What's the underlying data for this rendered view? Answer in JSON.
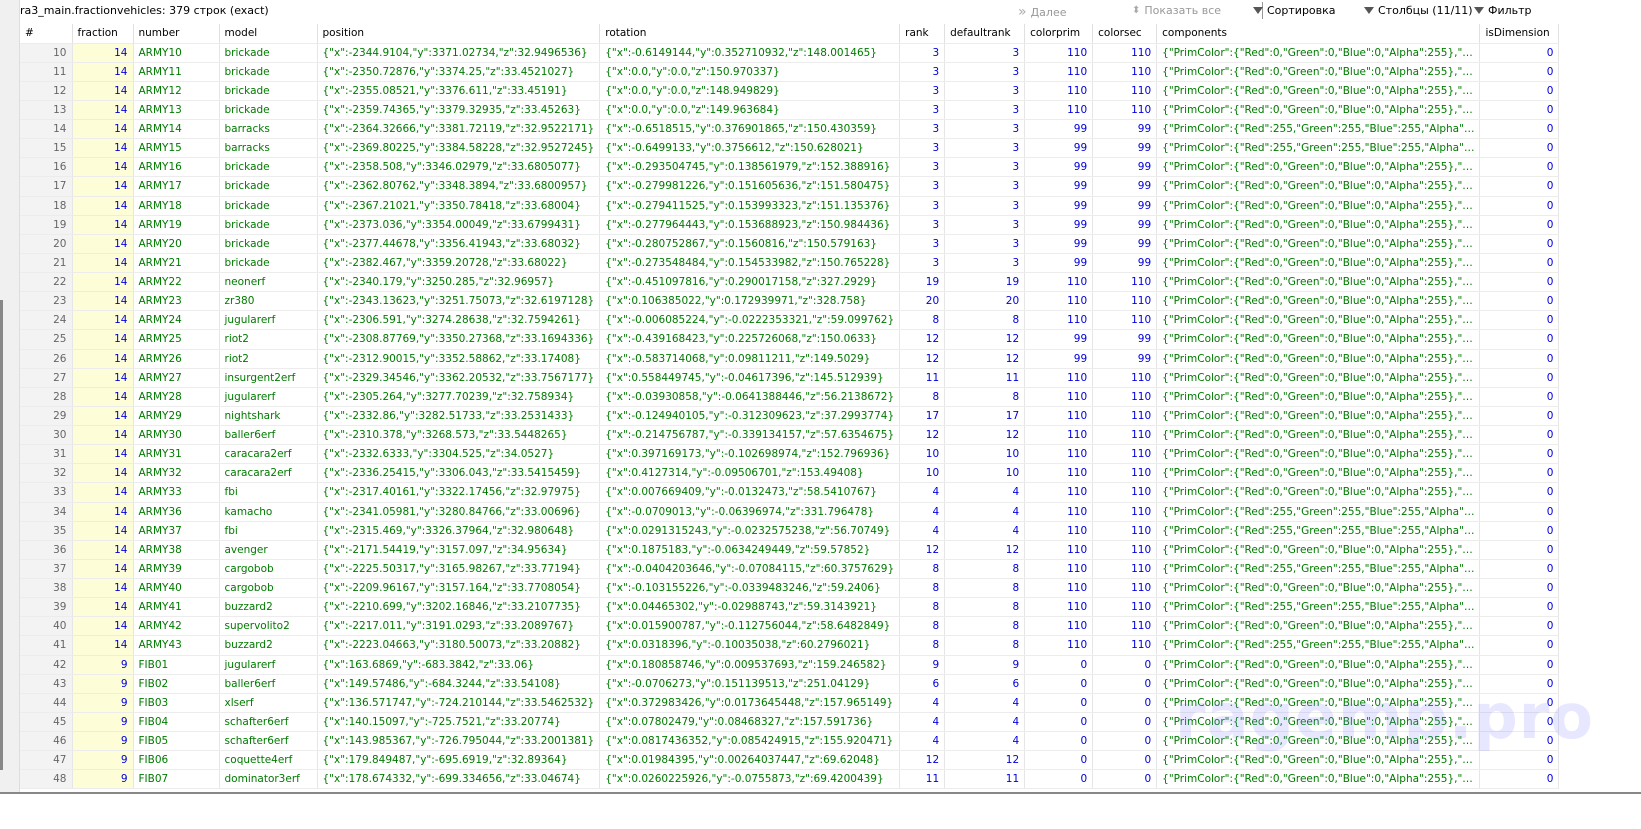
{
  "title": "ra3_main.fractionvehicles: 379 строк (exact)",
  "toolbar": {
    "next": "Далее",
    "show_all": "Показать все",
    "sort": "Сортировка",
    "columns": "Столбцы (11/11)",
    "filter": "Фильтр"
  },
  "columns": [
    "#",
    "fraction",
    "number",
    "model",
    "position",
    "rotation",
    "rank",
    "defaultrank",
    "colorprim",
    "colorsec",
    "components",
    "isDimension"
  ],
  "rows": [
    [
      "10",
      "14",
      "ARMY10",
      "brickade",
      "{\"x\":-2344.9104,\"y\":3371.02734,\"z\":32.9496536}",
      "{\"x\":-0.6149144,\"y\":0.352710932,\"z\":148.001465}",
      "3",
      "3",
      "110",
      "110",
      "{\"PrimColor\":{\"Red\":0,\"Green\":0,\"Blue\":0,\"Alpha\":255},\"…",
      "0"
    ],
    [
      "11",
      "14",
      "ARMY11",
      "brickade",
      "{\"x\":-2350.72876,\"y\":3374.25,\"z\":33.4521027}",
      "{\"x\":0.0,\"y\":0.0,\"z\":150.970337}",
      "3",
      "3",
      "110",
      "110",
      "{\"PrimColor\":{\"Red\":0,\"Green\":0,\"Blue\":0,\"Alpha\":255},\"…",
      "0"
    ],
    [
      "12",
      "14",
      "ARMY12",
      "brickade",
      "{\"x\":-2355.08521,\"y\":3376.611,\"z\":33.45191}",
      "{\"x\":0.0,\"y\":0.0,\"z\":148.949829}",
      "3",
      "3",
      "110",
      "110",
      "{\"PrimColor\":{\"Red\":0,\"Green\":0,\"Blue\":0,\"Alpha\":255},\"…",
      "0"
    ],
    [
      "13",
      "14",
      "ARMY13",
      "brickade",
      "{\"x\":-2359.74365,\"y\":3379.32935,\"z\":33.45263}",
      "{\"x\":0.0,\"y\":0.0,\"z\":149.963684}",
      "3",
      "3",
      "110",
      "110",
      "{\"PrimColor\":{\"Red\":0,\"Green\":0,\"Blue\":0,\"Alpha\":255},\"…",
      "0"
    ],
    [
      "14",
      "14",
      "ARMY14",
      "barracks",
      "{\"x\":-2364.32666,\"y\":3381.72119,\"z\":32.9522171}",
      "{\"x\":-0.6518515,\"y\":0.376901865,\"z\":150.430359}",
      "3",
      "3",
      "99",
      "99",
      "{\"PrimColor\":{\"Red\":255,\"Green\":255,\"Blue\":255,\"Alpha\"…",
      "0"
    ],
    [
      "15",
      "14",
      "ARMY15",
      "barracks",
      "{\"x\":-2369.80225,\"y\":3384.58228,\"z\":32.9527245}",
      "{\"x\":-0.6499133,\"y\":0.3756612,\"z\":150.628021}",
      "3",
      "3",
      "99",
      "99",
      "{\"PrimColor\":{\"Red\":255,\"Green\":255,\"Blue\":255,\"Alpha\"…",
      "0"
    ],
    [
      "16",
      "14",
      "ARMY16",
      "brickade",
      "{\"x\":-2358.508,\"y\":3346.02979,\"z\":33.6805077}",
      "{\"x\":-0.293504745,\"y\":0.138561979,\"z\":152.388916}",
      "3",
      "3",
      "99",
      "99",
      "{\"PrimColor\":{\"Red\":0,\"Green\":0,\"Blue\":0,\"Alpha\":255},\"…",
      "0"
    ],
    [
      "17",
      "14",
      "ARMY17",
      "brickade",
      "{\"x\":-2362.80762,\"y\":3348.3894,\"z\":33.6800957}",
      "{\"x\":-0.279981226,\"y\":0.151605636,\"z\":151.580475}",
      "3",
      "3",
      "99",
      "99",
      "{\"PrimColor\":{\"Red\":0,\"Green\":0,\"Blue\":0,\"Alpha\":255},\"…",
      "0"
    ],
    [
      "18",
      "14",
      "ARMY18",
      "brickade",
      "{\"x\":-2367.21021,\"y\":3350.78418,\"z\":33.68004}",
      "{\"x\":-0.279411525,\"y\":0.153993323,\"z\":151.135376}",
      "3",
      "3",
      "99",
      "99",
      "{\"PrimColor\":{\"Red\":0,\"Green\":0,\"Blue\":0,\"Alpha\":255},\"…",
      "0"
    ],
    [
      "19",
      "14",
      "ARMY19",
      "brickade",
      "{\"x\":-2373.036,\"y\":3354.00049,\"z\":33.6799431}",
      "{\"x\":-0.277964443,\"y\":0.153688923,\"z\":150.984436}",
      "3",
      "3",
      "99",
      "99",
      "{\"PrimColor\":{\"Red\":0,\"Green\":0,\"Blue\":0,\"Alpha\":255},\"…",
      "0"
    ],
    [
      "20",
      "14",
      "ARMY20",
      "brickade",
      "{\"x\":-2377.44678,\"y\":3356.41943,\"z\":33.68032}",
      "{\"x\":-0.280752867,\"y\":0.1560816,\"z\":150.579163}",
      "3",
      "3",
      "99",
      "99",
      "{\"PrimColor\":{\"Red\":0,\"Green\":0,\"Blue\":0,\"Alpha\":255},\"…",
      "0"
    ],
    [
      "21",
      "14",
      "ARMY21",
      "brickade",
      "{\"x\":-2382.467,\"y\":3359.20728,\"z\":33.68022}",
      "{\"x\":-0.273548484,\"y\":0.154533982,\"z\":150.765228}",
      "3",
      "3",
      "99",
      "99",
      "{\"PrimColor\":{\"Red\":0,\"Green\":0,\"Blue\":0,\"Alpha\":255},\"…",
      "0"
    ],
    [
      "22",
      "14",
      "ARMY22",
      "neonerf",
      "{\"x\":-2340.179,\"y\":3250.285,\"z\":32.96957}",
      "{\"x\":-0.451097816,\"y\":0.290017158,\"z\":327.2929}",
      "19",
      "19",
      "110",
      "110",
      "{\"PrimColor\":{\"Red\":0,\"Green\":0,\"Blue\":0,\"Alpha\":255},\"…",
      "0"
    ],
    [
      "23",
      "14",
      "ARMY23",
      "zr380",
      "{\"x\":-2343.13623,\"y\":3251.75073,\"z\":32.6197128}",
      "{\"x\":0.106385022,\"y\":0.172939971,\"z\":328.758}",
      "20",
      "20",
      "110",
      "110",
      "{\"PrimColor\":{\"Red\":0,\"Green\":0,\"Blue\":0,\"Alpha\":255},\"…",
      "0"
    ],
    [
      "24",
      "14",
      "ARMY24",
      "jugularerf",
      "{\"x\":-2306.591,\"y\":3274.28638,\"z\":32.7594261}",
      "{\"x\":-0.006085224,\"y\":-0.0222353321,\"z\":59.099762}",
      "8",
      "8",
      "110",
      "110",
      "{\"PrimColor\":{\"Red\":0,\"Green\":0,\"Blue\":0,\"Alpha\":255},\"…",
      "0"
    ],
    [
      "25",
      "14",
      "ARMY25",
      "riot2",
      "{\"x\":-2308.87769,\"y\":3350.27368,\"z\":33.1694336}",
      "{\"x\":-0.439168423,\"y\":0.225726068,\"z\":150.0633}",
      "12",
      "12",
      "99",
      "99",
      "{\"PrimColor\":{\"Red\":0,\"Green\":0,\"Blue\":0,\"Alpha\":255},\"…",
      "0"
    ],
    [
      "26",
      "14",
      "ARMY26",
      "riot2",
      "{\"x\":-2312.90015,\"y\":3352.58862,\"z\":33.17408}",
      "{\"x\":-0.583714068,\"y\":0.09811211,\"z\":149.5029}",
      "12",
      "12",
      "99",
      "99",
      "{\"PrimColor\":{\"Red\":0,\"Green\":0,\"Blue\":0,\"Alpha\":255},\"…",
      "0"
    ],
    [
      "27",
      "14",
      "ARMY27",
      "insurgent2erf",
      "{\"x\":-2329.34546,\"y\":3362.20532,\"z\":33.7567177}",
      "{\"x\":0.558449745,\"y\":-0.04617396,\"z\":145.512939}",
      "11",
      "11",
      "110",
      "110",
      "{\"PrimColor\":{\"Red\":0,\"Green\":0,\"Blue\":0,\"Alpha\":255},\"…",
      "0"
    ],
    [
      "28",
      "14",
      "ARMY28",
      "jugularerf",
      "{\"x\":-2305.264,\"y\":3277.70239,\"z\":32.758934}",
      "{\"x\":-0.03930858,\"y\":-0.0641388446,\"z\":56.2138672}",
      "8",
      "8",
      "110",
      "110",
      "{\"PrimColor\":{\"Red\":0,\"Green\":0,\"Blue\":0,\"Alpha\":255},\"…",
      "0"
    ],
    [
      "29",
      "14",
      "ARMY29",
      "nightshark",
      "{\"x\":-2332.86,\"y\":3282.51733,\"z\":33.2531433}",
      "{\"x\":-0.124940105,\"y\":-0.312309623,\"z\":37.2993774}",
      "17",
      "17",
      "110",
      "110",
      "{\"PrimColor\":{\"Red\":0,\"Green\":0,\"Blue\":0,\"Alpha\":255},\"…",
      "0"
    ],
    [
      "30",
      "14",
      "ARMY30",
      "baller6erf",
      "{\"x\":-2310.378,\"y\":3268.573,\"z\":33.5448265}",
      "{\"x\":-0.214756787,\"y\":-0.339134157,\"z\":57.6354675}",
      "12",
      "12",
      "110",
      "110",
      "{\"PrimColor\":{\"Red\":0,\"Green\":0,\"Blue\":0,\"Alpha\":255},\"…",
      "0"
    ],
    [
      "31",
      "14",
      "ARMY31",
      "caracara2erf",
      "{\"x\":-2332.6333,\"y\":3304.525,\"z\":34.0527}",
      "{\"x\":0.397169173,\"y\":-0.102698974,\"z\":152.796936}",
      "10",
      "10",
      "110",
      "110",
      "{\"PrimColor\":{\"Red\":0,\"Green\":0,\"Blue\":0,\"Alpha\":255},\"…",
      "0"
    ],
    [
      "32",
      "14",
      "ARMY32",
      "caracara2erf",
      "{\"x\":-2336.25415,\"y\":3306.043,\"z\":33.5415459}",
      "{\"x\":0.4127314,\"y\":-0.09506701,\"z\":153.49408}",
      "10",
      "10",
      "110",
      "110",
      "{\"PrimColor\":{\"Red\":0,\"Green\":0,\"Blue\":0,\"Alpha\":255},\"…",
      "0"
    ],
    [
      "33",
      "14",
      "ARMY33",
      "fbi",
      "{\"x\":-2317.40161,\"y\":3322.17456,\"z\":32.97975}",
      "{\"x\":0.007669409,\"y\":-0.0132473,\"z\":58.5410767}",
      "4",
      "4",
      "110",
      "110",
      "{\"PrimColor\":{\"Red\":0,\"Green\":0,\"Blue\":0,\"Alpha\":255},\"…",
      "0"
    ],
    [
      "34",
      "14",
      "ARMY36",
      "kamacho",
      "{\"x\":-2341.05981,\"y\":3280.84766,\"z\":33.00696}",
      "{\"x\":-0.0709013,\"y\":-0.06396974,\"z\":331.796478}",
      "4",
      "4",
      "110",
      "110",
      "{\"PrimColor\":{\"Red\":255,\"Green\":255,\"Blue\":255,\"Alpha\"…",
      "0"
    ],
    [
      "35",
      "14",
      "ARMY37",
      "fbi",
      "{\"x\":-2315.469,\"y\":3326.37964,\"z\":32.980648}",
      "{\"x\":0.0291315243,\"y\":-0.0232575238,\"z\":56.70749}",
      "4",
      "4",
      "110",
      "110",
      "{\"PrimColor\":{\"Red\":255,\"Green\":255,\"Blue\":255,\"Alpha\"…",
      "0"
    ],
    [
      "36",
      "14",
      "ARMY38",
      "avenger",
      "{\"x\":-2171.54419,\"y\":3157.097,\"z\":34.95634}",
      "{\"x\":0.1875183,\"y\":-0.0634249449,\"z\":59.57852}",
      "12",
      "12",
      "110",
      "110",
      "{\"PrimColor\":{\"Red\":0,\"Green\":0,\"Blue\":0,\"Alpha\":255},\"…",
      "0"
    ],
    [
      "37",
      "14",
      "ARMY39",
      "cargobob",
      "{\"x\":-2225.50317,\"y\":3165.98267,\"z\":33.77194}",
      "{\"x\":-0.0404203646,\"y\":-0.07084115,\"z\":60.3757629}",
      "8",
      "8",
      "110",
      "110",
      "{\"PrimColor\":{\"Red\":255,\"Green\":255,\"Blue\":255,\"Alpha\"…",
      "0"
    ],
    [
      "38",
      "14",
      "ARMY40",
      "cargobob",
      "{\"x\":-2209.96167,\"y\":3157.164,\"z\":33.7708054}",
      "{\"x\":-0.103155226,\"y\":-0.0339483246,\"z\":59.2406}",
      "8",
      "8",
      "110",
      "110",
      "{\"PrimColor\":{\"Red\":0,\"Green\":0,\"Blue\":0,\"Alpha\":255},\"…",
      "0"
    ],
    [
      "39",
      "14",
      "ARMY41",
      "buzzard2",
      "{\"x\":-2210.699,\"y\":3202.16846,\"z\":33.2107735}",
      "{\"x\":0.04465302,\"y\":-0.02988743,\"z\":59.3143921}",
      "8",
      "8",
      "110",
      "110",
      "{\"PrimColor\":{\"Red\":255,\"Green\":255,\"Blue\":255,\"Alpha\"…",
      "0"
    ],
    [
      "40",
      "14",
      "ARMY42",
      "supervolito2",
      "{\"x\":-2217.011,\"y\":3191.0293,\"z\":33.2089767}",
      "{\"x\":0.015900787,\"y\":-0.112756044,\"z\":58.6482849}",
      "8",
      "8",
      "110",
      "110",
      "{\"PrimColor\":{\"Red\":0,\"Green\":0,\"Blue\":0,\"Alpha\":255},\"…",
      "0"
    ],
    [
      "41",
      "14",
      "ARMY43",
      "buzzard2",
      "{\"x\":-2223.04663,\"y\":3180.50073,\"z\":33.20882}",
      "{\"x\":0.0318396,\"y\":-0.10035038,\"z\":60.2796021}",
      "8",
      "8",
      "110",
      "110",
      "{\"PrimColor\":{\"Red\":255,\"Green\":255,\"Blue\":255,\"Alpha\"…",
      "0"
    ],
    [
      "42",
      "9",
      "FIB01",
      "jugularerf",
      "{\"x\":163.6869,\"y\":-683.3842,\"z\":33.06}",
      "{\"x\":0.180858746,\"y\":0.009537693,\"z\":159.246582}",
      "9",
      "9",
      "0",
      "0",
      "{\"PrimColor\":{\"Red\":0,\"Green\":0,\"Blue\":0,\"Alpha\":255},\"…",
      "0"
    ],
    [
      "43",
      "9",
      "FIB02",
      "baller6erf",
      "{\"x\":149.57486,\"y\":-684.3244,\"z\":33.54108}",
      "{\"x\":-0.0706273,\"y\":0.151139513,\"z\":251.04129}",
      "6",
      "6",
      "0",
      "0",
      "{\"PrimColor\":{\"Red\":0,\"Green\":0,\"Blue\":0,\"Alpha\":255},\"…",
      "0"
    ],
    [
      "44",
      "9",
      "FIB03",
      "xlserf",
      "{\"x\":136.571747,\"y\":-724.210144,\"z\":33.5462532}",
      "{\"x\":0.372983426,\"y\":0.0173645448,\"z\":157.965149}",
      "4",
      "4",
      "0",
      "0",
      "{\"PrimColor\":{\"Red\":0,\"Green\":0,\"Blue\":0,\"Alpha\":255},\"…",
      "0"
    ],
    [
      "45",
      "9",
      "FIB04",
      "schafter6erf",
      "{\"x\":140.15097,\"y\":-725.7521,\"z\":33.20774}",
      "{\"x\":0.07802479,\"y\":0.08468327,\"z\":157.591736}",
      "4",
      "4",
      "0",
      "0",
      "{\"PrimColor\":{\"Red\":0,\"Green\":0,\"Blue\":0,\"Alpha\":255},\"…",
      "0"
    ],
    [
      "46",
      "9",
      "FIB05",
      "schafter6erf",
      "{\"x\":143.985367,\"y\":-726.795044,\"z\":33.2001381}",
      "{\"x\":0.0817436352,\"y\":0.085424915,\"z\":155.920471}",
      "4",
      "4",
      "0",
      "0",
      "{\"PrimColor\":{\"Red\":0,\"Green\":0,\"Blue\":0,\"Alpha\":255},\"…",
      "0"
    ],
    [
      "47",
      "9",
      "FIB06",
      "coquette4erf",
      "{\"x\":179.849487,\"y\":-695.6919,\"z\":32.89364}",
      "{\"x\":0.01984395,\"y\":0.00264037447,\"z\":69.62048}",
      "12",
      "12",
      "0",
      "0",
      "{\"PrimColor\":{\"Red\":0,\"Green\":0,\"Blue\":0,\"Alpha\":255},\"…",
      "0"
    ],
    [
      "48",
      "9",
      "FIB07",
      "dominator3erf",
      "{\"x\":178.674332,\"y\":-699.334656,\"z\":33.04674}",
      "{\"x\":0.0260225926,\"y\":-0.0755873,\"z\":69.4200439}",
      "11",
      "11",
      "0",
      "0",
      "{\"PrimColor\":{\"Red\":0,\"Green\":0,\"Blue\":0,\"Alpha\":255},\"…",
      "0"
    ]
  ],
  "watermark": "ragemp.pro",
  "colors": {
    "text_green": "#007a00",
    "number_blue": "#0000e0",
    "fraction_bg": "#fdfdd8"
  }
}
